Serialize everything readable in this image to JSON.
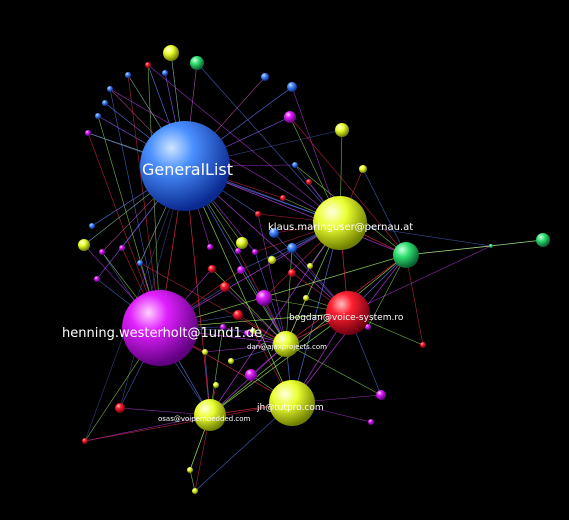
{
  "graph": {
    "labels": {
      "generallist": "GeneralList",
      "klaus": "klaus.maringuser@pernau.at",
      "bogdan": "bogdan@voice-system.ro",
      "henning": "henning.westerholt@1und1.de",
      "dan": "dan@ajaxprojects.com",
      "jh": "jh@tutpro.com",
      "osas": "osas@voipembedded.com"
    },
    "colors": {
      "blue": "#3a7bff",
      "magenta": "#e020ff",
      "yellow": "#e8ff20",
      "red": "#ff2030",
      "green": "#30e070",
      "edge_green": "#a8ff60",
      "edge_red": "#ff3050",
      "edge_blue": "#6080ff",
      "edge_magenta": "#d040ff"
    }
  }
}
